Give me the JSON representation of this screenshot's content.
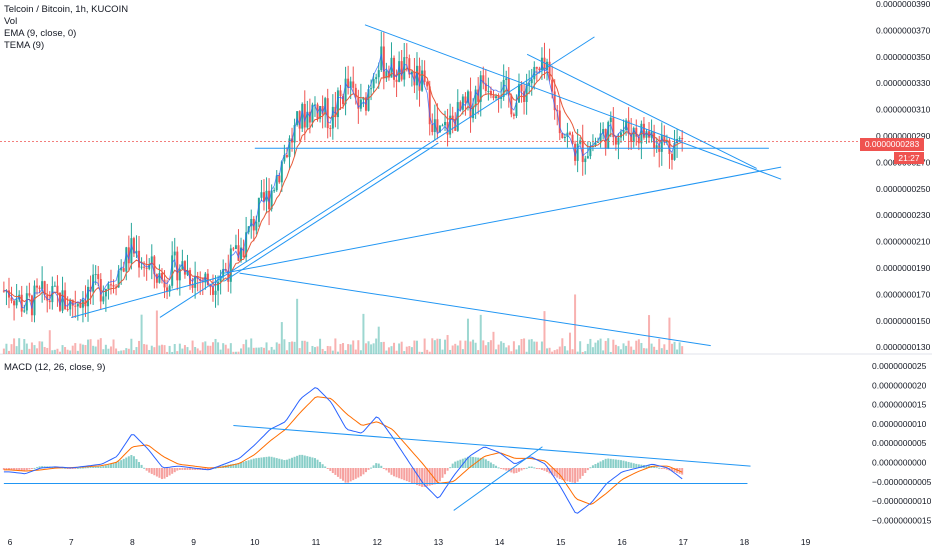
{
  "legend": {
    "symbol": "Telcoin / Bitcoin, 1h, KUCOIN",
    "vol": "Vol",
    "ema": "EMA (9, close, 0)",
    "tema": "TEMA (9)",
    "macd": "MACD (12, 26, close, 9)"
  },
  "price_badge": {
    "price": "0.0000000283",
    "countdown": "21:27"
  },
  "colors": {
    "up": "#26a69a",
    "down": "#ef5350",
    "ema": "#e75a3a",
    "tema": "#2962ff",
    "trendline": "#2196f3",
    "macd": "#2962ff",
    "signal": "#ff6d00",
    "hist_up": "#26a69a",
    "hist_down": "#ef5350",
    "pane_divider": "#e0e3eb"
  },
  "chart_data": [
    {
      "type": "candlestick",
      "title": "Telcoin / Bitcoin, 1h, KUCOIN",
      "yticks": [
        "0.0000000390",
        "0.0000000370",
        "0.0000000350",
        "0.0000000330",
        "0.0000000310",
        "0.0000000290",
        "0.0000000270",
        "0.0000000250",
        "0.0000000230",
        "0.0000000210",
        "0.0000000190",
        "0.0000000170",
        "0.0000000150",
        "0.0000000130"
      ],
      "ylim": [
        1.3e-08,
        3.9e-08
      ],
      "xticks": [
        "6",
        "7",
        "8",
        "9",
        "10",
        "11",
        "12",
        "13",
        "14",
        "15",
        "16",
        "17",
        "18",
        "19"
      ],
      "xlim": [
        5.85,
        19.5
      ],
      "last_price": 2.83e-08,
      "series": [
        {
          "name": "close (approx.)",
          "x": [
            6,
            6.25,
            6.5,
            6.75,
            7,
            7.25,
            7.5,
            7.75,
            8,
            8.25,
            8.5,
            8.75,
            9,
            9.25,
            9.5,
            9.75,
            10,
            10.25,
            10.5,
            10.75,
            11,
            11.25,
            11.5,
            11.75,
            12,
            12.25,
            12.5,
            12.75,
            13,
            13.25,
            13.5,
            13.75,
            14,
            14.25,
            14.5,
            14.75,
            15,
            15.25,
            15.5,
            15.75,
            16,
            16.25,
            16.5,
            16.75,
            17
          ],
          "values": [
            1.72e-08,
            1.6e-08,
            1.68e-08,
            1.66e-08,
            1.62e-08,
            1.7e-08,
            1.75e-08,
            1.85e-08,
            2.03e-08,
            1.9e-08,
            1.8e-08,
            1.92e-08,
            1.83e-08,
            1.78e-08,
            1.87e-08,
            2e-08,
            2.25e-08,
            2.45e-08,
            2.75e-08,
            3e-08,
            3.1e-08,
            3e-08,
            3.25e-08,
            3.05e-08,
            3.45e-08,
            3.35e-08,
            3.35e-08,
            3.25e-08,
            2.85e-08,
            3e-08,
            3.1e-08,
            3.3e-08,
            3.25e-08,
            3.1e-08,
            3.3e-08,
            3.35e-08,
            2.95e-08,
            2.75e-08,
            2.8e-08,
            2.9e-08,
            2.92e-08,
            2.9e-08,
            2.88e-08,
            2.8e-08,
            2.83e-08
          ]
        }
      ],
      "volume": {
        "name": "Vol"
      }
    },
    {
      "type": "line",
      "title": "MACD (12, 26, close, 9)",
      "yticks": [
        "0.0000000025",
        "0.0000000020",
        "0.0000000015",
        "0.0000000010",
        "0.0000000005",
        "0.0000000000",
        "−0.0000000005",
        "−0.0000000010",
        "−0.0000000015"
      ],
      "ylim": [
        -1.5e-09,
        2.5e-09
      ],
      "series": [
        {
          "name": "MACD",
          "x": [
            6,
            6.25,
            6.5,
            6.75,
            7,
            7.25,
            7.5,
            7.75,
            8,
            8.25,
            8.5,
            8.75,
            9,
            9.25,
            9.5,
            9.75,
            10,
            10.25,
            10.5,
            10.75,
            11,
            11.25,
            11.5,
            11.75,
            12,
            12.25,
            12.5,
            12.75,
            13,
            13.25,
            13.5,
            13.75,
            14,
            14.25,
            14.5,
            14.75,
            15,
            15.25,
            15.5,
            15.75,
            16,
            16.25,
            16.5,
            16.75,
            17
          ],
          "values": [
            -1e-10,
            -1.5e-10,
            0.0,
            3e-11,
            0.0,
            5e-11,
            1e-10,
            3e-10,
            9e-10,
            5e-10,
            0.0,
            5e-11,
            0.0,
            -5e-11,
            1e-10,
            2.5e-10,
            6e-10,
            1e-09,
            1.2e-09,
            1.8e-09,
            2.1e-09,
            1.7e-09,
            1e-09,
            9e-10,
            1.35e-09,
            8e-10,
            2e-10,
            -4e-10,
            -8e-10,
            -2e-10,
            3e-10,
            5.5e-10,
            4e-10,
            1e-10,
            3e-10,
            1e-10,
            -5e-10,
            -1.2e-09,
            -9e-10,
            -4e-10,
            -1e-10,
            0.0,
            1e-10,
            0.0,
            -3e-10
          ]
        },
        {
          "name": "Signal",
          "x": [
            6,
            6.25,
            6.5,
            6.75,
            7,
            7.25,
            7.5,
            7.75,
            8,
            8.25,
            8.5,
            8.75,
            9,
            9.25,
            9.5,
            9.75,
            10,
            10.25,
            10.5,
            10.75,
            11,
            11.25,
            11.5,
            11.75,
            12,
            12.25,
            12.5,
            12.75,
            13,
            13.25,
            13.5,
            13.75,
            14,
            14.25,
            14.5,
            14.75,
            15,
            15.25,
            15.5,
            15.75,
            16,
            16.25,
            16.5,
            16.75,
            17
          ],
          "values": [
            -5e-11,
            -8e-11,
            -5e-11,
            0.0,
            1e-11,
            3e-11,
            6e-11,
            1.5e-10,
            5.5e-10,
            6e-10,
            3e-10,
            1e-10,
            5e-11,
            0.0,
            3e-11,
            1.2e-10,
            3.5e-10,
            7e-10,
            1e-09,
            1.45e-09,
            1.85e-09,
            1.8e-09,
            1.4e-09,
            1.1e-09,
            1.2e-09,
            1e-09,
            5.5e-10,
            1e-10,
            -4e-10,
            -3.5e-10,
            0.0,
            3e-10,
            4e-10,
            2.5e-10,
            2.5e-10,
            1.8e-10,
            -2e-10,
            -8e-10,
            -9.5e-10,
            -6.5e-10,
            -3e-10,
            -1e-10,
            5e-11,
            5e-11,
            -1.2e-10
          ]
        }
      ]
    }
  ]
}
